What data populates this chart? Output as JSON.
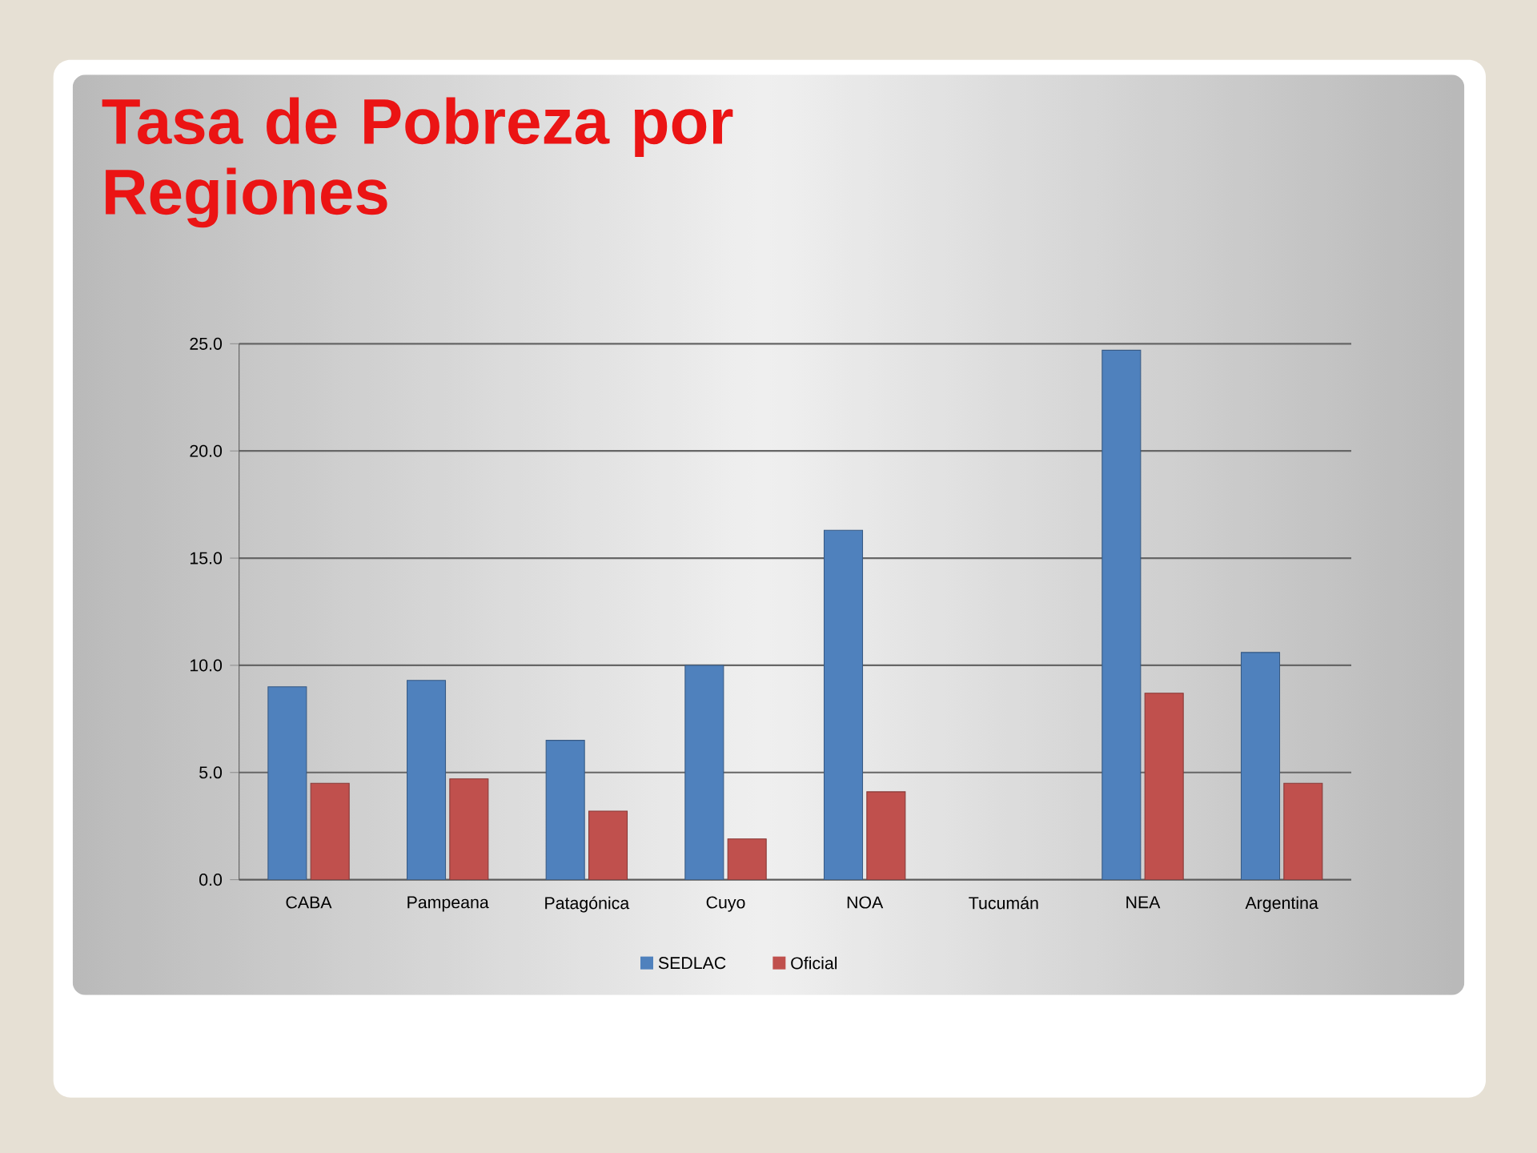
{
  "chart_data": {
    "type": "bar",
    "title": "Tasa de Pobreza por Regiones",
    "categories": [
      "CABA",
      "Pampeana",
      "Patagónica",
      "Cuyo",
      "NOA",
      "Tucumán",
      "NEA",
      "Argentina"
    ],
    "series": [
      {
        "name": "SEDLAC",
        "color": "#4f81bd",
        "values": [
          9.0,
          9.3,
          6.5,
          10.0,
          16.3,
          null,
          24.7,
          10.6
        ]
      },
      {
        "name": "Oficial",
        "color": "#c0504d",
        "values": [
          4.5,
          4.7,
          3.2,
          1.9,
          4.1,
          null,
          8.7,
          4.5
        ]
      }
    ],
    "ylim": [
      0,
      25
    ],
    "yticks": [
      {
        "value": 0,
        "label": "0.0"
      },
      {
        "value": 5,
        "label": "5.0"
      },
      {
        "value": 10,
        "label": "10.0"
      },
      {
        "value": 15,
        "label": "15.0"
      },
      {
        "value": 20,
        "label": "20.0"
      },
      {
        "value": 25,
        "label": "25.0"
      }
    ],
    "grid": "y",
    "legend": "bottom"
  }
}
